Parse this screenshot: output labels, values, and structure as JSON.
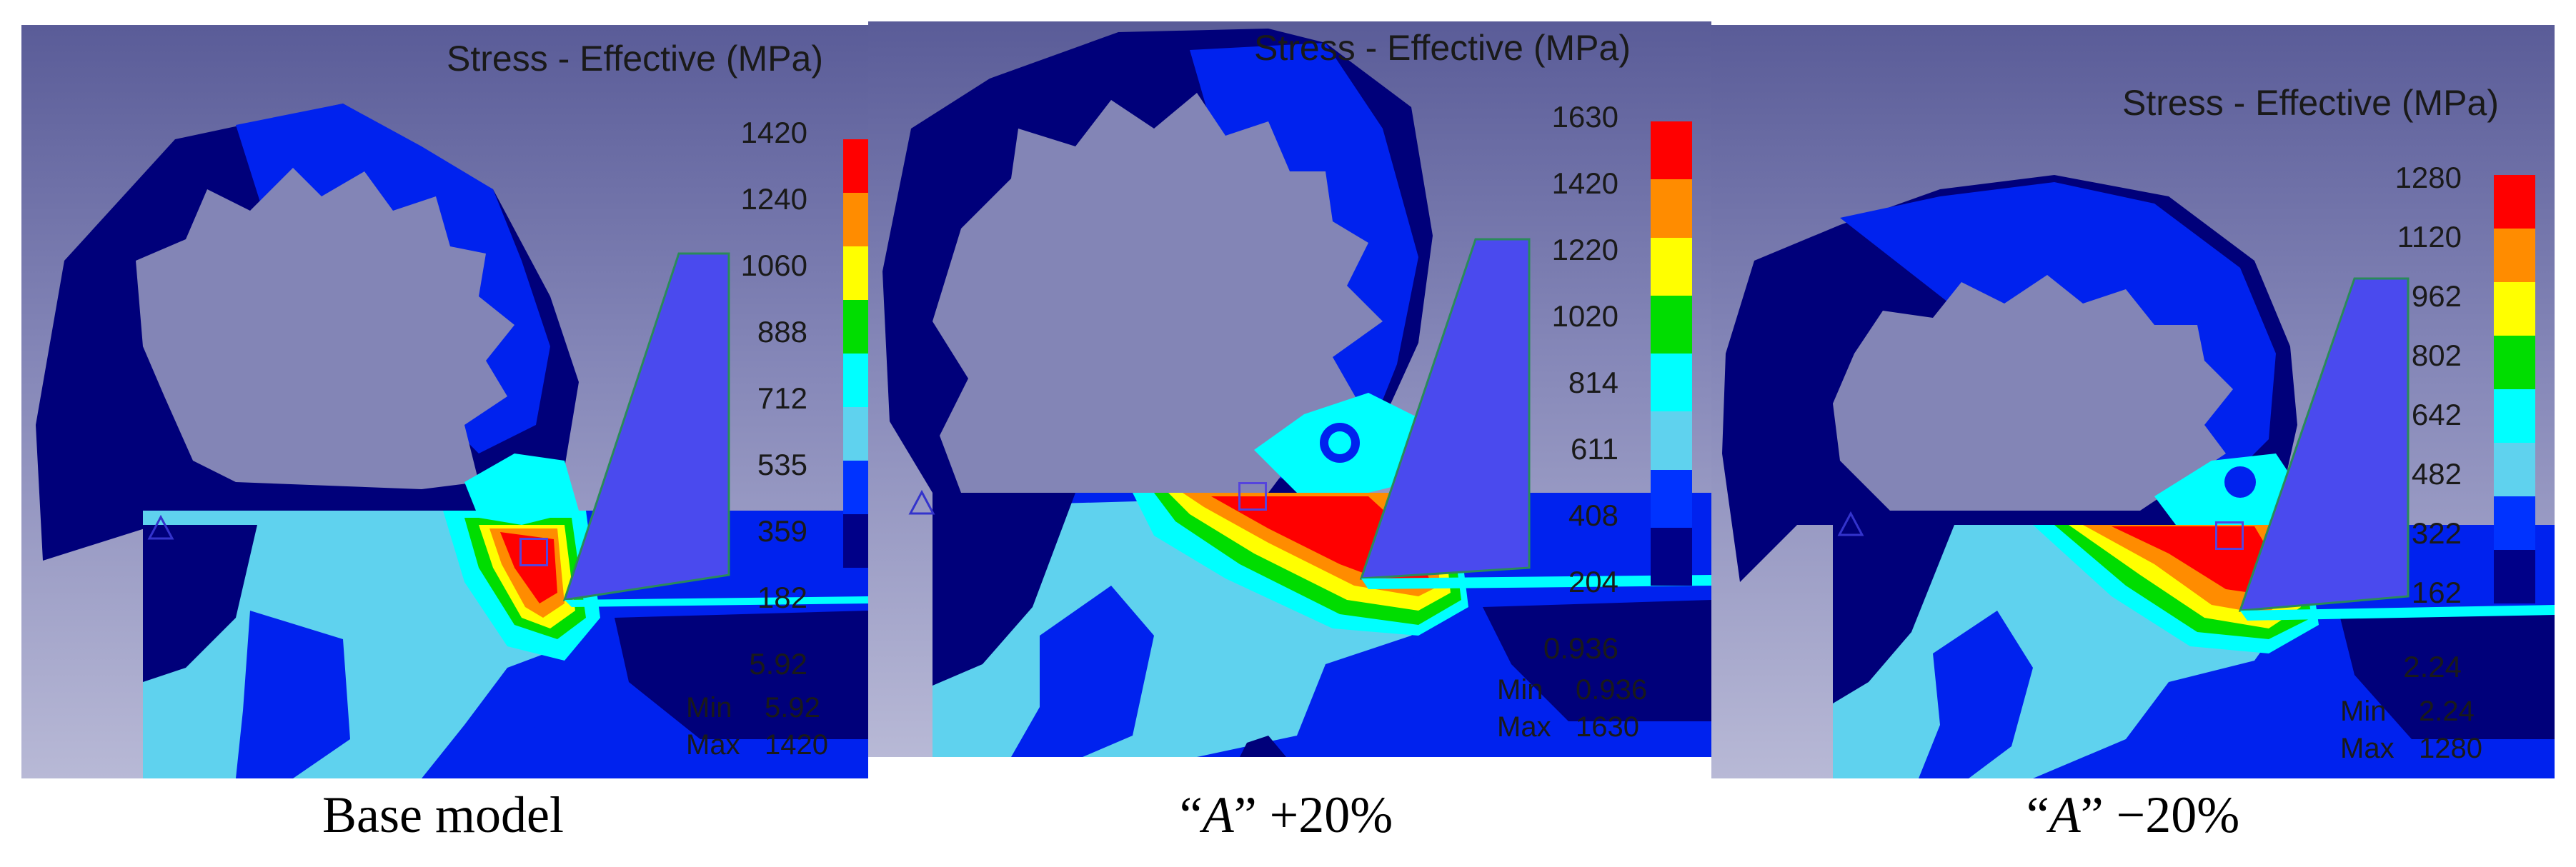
{
  "panels": [
    {
      "title": "Stress - Effective (MPa)",
      "legend_ticks": [
        "1420",
        "1240",
        "1060",
        "888",
        "712",
        "535",
        "359",
        "182",
        "5.92"
      ],
      "min_label": "Min",
      "min_value": "5.92",
      "max_label": "Max",
      "max_value": "1420",
      "caption": "Base model"
    },
    {
      "title": "Stress - Effective (MPa)",
      "legend_ticks": [
        "1630",
        "1420",
        "1220",
        "1020",
        "814",
        "611",
        "408",
        "204",
        "0.936"
      ],
      "min_label": "Min",
      "min_value": "0.936",
      "max_label": "Max",
      "max_value": "1630",
      "caption_quote_open": "“",
      "caption_var": "A",
      "caption_quote_close": "”",
      "caption_rest": " +20%"
    },
    {
      "title": "Stress - Effective (MPa)",
      "legend_ticks": [
        "1280",
        "1120",
        "962",
        "802",
        "642",
        "482",
        "322",
        "162",
        "2.24"
      ],
      "min_label": "Min",
      "min_value": "2.24",
      "max_label": "Max",
      "max_value": "1280",
      "caption_quote_open": "“",
      "caption_var": "A",
      "caption_quote_close": "”",
      "caption_rest": " −20%"
    }
  ],
  "legend_colors": [
    "#ff0000",
    "#ff8c00",
    "#ffff00",
    "#00dd00",
    "#00ffff",
    "#5fd2ee",
    "#0033ff",
    "#000088"
  ],
  "contour_colors": {
    "background_top": "#5a5c98",
    "background_bottom": "#b8b9d6",
    "dark_blue": "#00007a",
    "blue": "#0022ee",
    "light_blue": "#5fd2ee",
    "cyan": "#00ffff",
    "green": "#00dd00",
    "yellow": "#ffff00",
    "orange": "#ff8c00",
    "red": "#ff0000",
    "tool": "#4a4aee"
  }
}
